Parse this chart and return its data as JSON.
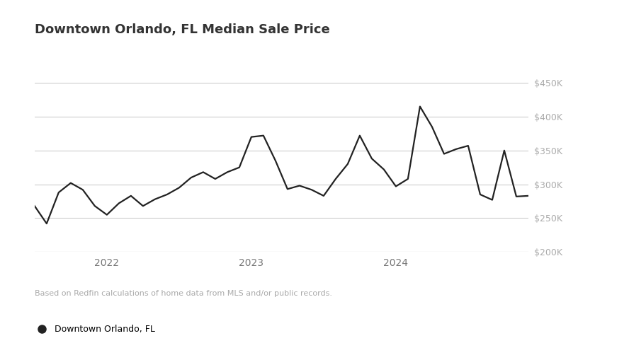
{
  "title": "Downtown Orlando, FL Median Sale Price",
  "title_fontsize": 13,
  "title_fontweight": "bold",
  "footnote": "Based on Redfin calculations of home data from MLS and/or public records.",
  "legend_label": "Downtown Orlando, FL",
  "line_color": "#222222",
  "line_width": 1.6,
  "background_color": "#ffffff",
  "grid_color": "#cccccc",
  "ytick_color": "#aaaaaa",
  "xtick_color": "#777777",
  "ylim": [
    200000,
    450000
  ],
  "yticks": [
    200000,
    250000,
    300000,
    350000,
    400000,
    450000
  ],
  "ytick_labels": [
    "$200K",
    "$250K",
    "$300K",
    "$350K",
    "$400K",
    "$450K"
  ],
  "x_values": [
    0,
    1,
    2,
    3,
    4,
    5,
    6,
    7,
    8,
    9,
    10,
    11,
    12,
    13,
    14,
    15,
    16,
    17,
    18,
    19,
    20,
    21,
    22,
    23,
    24,
    25,
    26,
    27,
    28,
    29,
    30,
    31,
    32,
    33,
    34,
    35,
    36,
    37,
    38,
    39,
    40,
    41
  ],
  "y_values": [
    268000,
    242000,
    288000,
    302000,
    292000,
    268000,
    255000,
    272000,
    283000,
    268000,
    278000,
    285000,
    295000,
    310000,
    318000,
    308000,
    318000,
    325000,
    370000,
    372000,
    335000,
    293000,
    298000,
    292000,
    283000,
    308000,
    330000,
    372000,
    338000,
    322000,
    297000,
    308000,
    415000,
    385000,
    345000,
    352000,
    357000,
    285000,
    277000,
    350000,
    282000,
    283000
  ],
  "year_labels": [
    {
      "x": 6,
      "label": "2022"
    },
    {
      "x": 18,
      "label": "2023"
    },
    {
      "x": 30,
      "label": "2024"
    }
  ],
  "footnote_color": "#aaaaaa",
  "footnote_fontsize": 8,
  "legend_fontsize": 9,
  "legend_dot_size": 8
}
